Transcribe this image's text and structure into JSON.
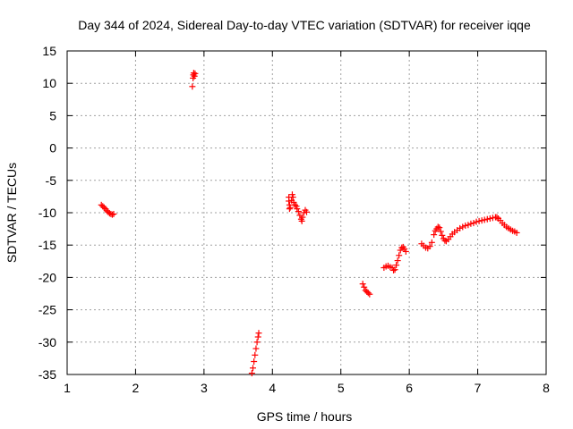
{
  "chart_data": {
    "type": "scatter",
    "title": "Day 344 of 2024, Sidereal Day-to-day VTEC variation (SDTVAR) for receiver iqqe",
    "xlabel": "GPS time / hours",
    "ylabel": "SDTVAR / TECUs",
    "xlim": [
      1,
      8
    ],
    "ylim": [
      -35,
      15
    ],
    "xticks": [
      1,
      2,
      3,
      4,
      5,
      6,
      7,
      8
    ],
    "yticks": [
      15,
      10,
      5,
      0,
      -5,
      -10,
      -15,
      -20,
      -25,
      -30,
      -35
    ],
    "grid": true,
    "marker": "+",
    "color": "#ff0000",
    "series": [
      {
        "name": "SDTVAR",
        "points": [
          [
            1.5,
            -8.8
          ],
          [
            1.52,
            -9.0
          ],
          [
            1.54,
            -9.2
          ],
          [
            1.56,
            -9.4
          ],
          [
            1.58,
            -9.7
          ],
          [
            1.6,
            -9.9
          ],
          [
            1.62,
            -10.1
          ],
          [
            1.64,
            -10.2
          ],
          [
            1.66,
            -10.3
          ],
          [
            1.68,
            -10.2
          ],
          [
            2.83,
            9.5
          ],
          [
            2.84,
            10.8
          ],
          [
            2.845,
            11.3
          ],
          [
            2.85,
            11.6
          ],
          [
            2.86,
            11.1
          ],
          [
            2.87,
            11.5
          ],
          [
            3.7,
            -34.8
          ],
          [
            3.715,
            -34.0
          ],
          [
            3.73,
            -33.0
          ],
          [
            3.745,
            -32.0
          ],
          [
            3.76,
            -31.0
          ],
          [
            3.775,
            -30.0
          ],
          [
            3.79,
            -29.2
          ],
          [
            3.8,
            -28.6
          ],
          [
            4.24,
            -7.6
          ],
          [
            4.24,
            -8.2
          ],
          [
            4.25,
            -8.8
          ],
          [
            4.25,
            -9.4
          ],
          [
            4.26,
            -9.2
          ],
          [
            4.28,
            -8.1
          ],
          [
            4.29,
            -7.2
          ],
          [
            4.3,
            -7.6
          ],
          [
            4.31,
            -8.4
          ],
          [
            4.33,
            -8.8
          ],
          [
            4.35,
            -9.0
          ],
          [
            4.36,
            -9.4
          ],
          [
            4.38,
            -9.8
          ],
          [
            4.4,
            -10.4
          ],
          [
            4.42,
            -11.0
          ],
          [
            4.43,
            -11.3
          ],
          [
            4.44,
            -10.7
          ],
          [
            4.46,
            -10.0
          ],
          [
            4.48,
            -9.6
          ],
          [
            4.5,
            -9.9
          ],
          [
            5.32,
            -21.0
          ],
          [
            5.34,
            -21.5
          ],
          [
            5.36,
            -22.0
          ],
          [
            5.38,
            -22.2
          ],
          [
            5.4,
            -22.4
          ],
          [
            5.42,
            -22.6
          ],
          [
            5.63,
            -18.5
          ],
          [
            5.66,
            -18.3
          ],
          [
            5.69,
            -18.2
          ],
          [
            5.72,
            -18.4
          ],
          [
            5.75,
            -18.5
          ],
          [
            5.77,
            -18.9
          ],
          [
            5.79,
            -18.8
          ],
          [
            5.81,
            -18.1
          ],
          [
            5.83,
            -17.4
          ],
          [
            5.85,
            -16.6
          ],
          [
            5.87,
            -15.8
          ],
          [
            5.89,
            -15.4
          ],
          [
            5.91,
            -15.3
          ],
          [
            5.93,
            -15.6
          ],
          [
            5.95,
            -16.0
          ],
          [
            6.18,
            -14.8
          ],
          [
            6.21,
            -15.1
          ],
          [
            6.24,
            -15.4
          ],
          [
            6.27,
            -15.5
          ],
          [
            6.3,
            -15.2
          ],
          [
            6.33,
            -14.6
          ],
          [
            6.36,
            -13.4
          ],
          [
            6.38,
            -12.8
          ],
          [
            6.4,
            -12.5
          ],
          [
            6.42,
            -12.2
          ],
          [
            6.44,
            -12.3
          ],
          [
            6.46,
            -12.9
          ],
          [
            6.48,
            -13.5
          ],
          [
            6.5,
            -14.0
          ],
          [
            6.52,
            -14.3
          ],
          [
            6.54,
            -14.4
          ],
          [
            6.57,
            -14.1
          ],
          [
            6.6,
            -13.7
          ],
          [
            6.63,
            -13.3
          ],
          [
            6.66,
            -13.0
          ],
          [
            6.7,
            -12.7
          ],
          [
            6.74,
            -12.4
          ],
          [
            6.78,
            -12.2
          ],
          [
            6.82,
            -12.0
          ],
          [
            6.86,
            -11.9
          ],
          [
            6.9,
            -11.7
          ],
          [
            6.94,
            -11.6
          ],
          [
            6.98,
            -11.4
          ],
          [
            7.02,
            -11.3
          ],
          [
            7.06,
            -11.2
          ],
          [
            7.1,
            -11.1
          ],
          [
            7.14,
            -11.0
          ],
          [
            7.18,
            -10.9
          ],
          [
            7.22,
            -10.8
          ],
          [
            7.26,
            -10.7
          ],
          [
            7.28,
            -10.7
          ],
          [
            7.3,
            -10.9
          ],
          [
            7.33,
            -11.2
          ],
          [
            7.36,
            -11.6
          ],
          [
            7.39,
            -11.9
          ],
          [
            7.42,
            -12.2
          ],
          [
            7.45,
            -12.4
          ],
          [
            7.48,
            -12.6
          ],
          [
            7.51,
            -12.8
          ],
          [
            7.54,
            -12.9
          ],
          [
            7.57,
            -13.1
          ]
        ]
      }
    ]
  }
}
